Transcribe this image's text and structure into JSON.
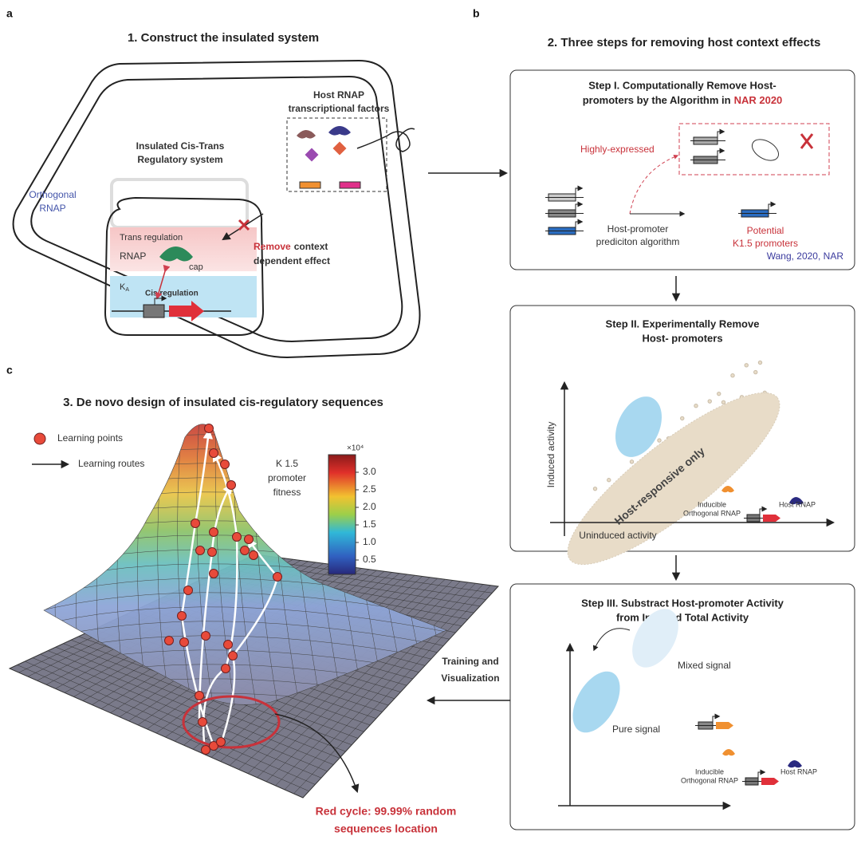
{
  "panel_a": {
    "label": "a",
    "title": "1. Construct the insulated system",
    "host_rnap": [
      "Host RNAP",
      "transcriptional factors"
    ],
    "insulated_system": [
      "Insulated Cis-Trans",
      "Regulatory system"
    ],
    "orthogonal_rnap": [
      "Orthogonal",
      "RNAP"
    ],
    "trans_regulation": "Trans regulation",
    "rnap": "RNAP",
    "cap": "cap",
    "ka": {
      "base": "K",
      "sub": "A"
    },
    "cis_regulation": "Cis regulation",
    "remove": {
      "highlight": "Remove",
      "rest": "context",
      "line2": "dependent effect"
    }
  },
  "panel_b": {
    "label": "b",
    "title": "2. Three steps for removing host context effects",
    "step1": {
      "title": [
        "Step I. Computationally Remove Host-",
        "promoters by the Algorithm in"
      ],
      "title_highlight": "NAR 2020",
      "highly_expressed": "Highly-expressed",
      "algorithm": [
        "Host-promoter",
        "prediciton algorithm"
      ],
      "potential": [
        "Potential",
        "K1.5 promoters"
      ],
      "citation": "Wang, 2020, NAR"
    },
    "step2": {
      "title": [
        "Step II. Experimentally Remove",
        "Host- promoters"
      ],
      "y_axis": "Induced activity",
      "x_axis": "Uninduced activity",
      "cluster": "Host-responsive only",
      "inducible": [
        "Inducible",
        "Orthogonal RNAP"
      ],
      "host_rnap": "Host RNAP"
    },
    "step3": {
      "title": [
        "Step III. Substract Host-promoter Activity",
        "from Induced Total Activity"
      ],
      "mixed": "Mixed signal",
      "pure": "Pure signal",
      "inducible": [
        "Inducible",
        "Orthogonal RNAP"
      ],
      "host_rnap": "Host RNAP"
    }
  },
  "panel_c": {
    "label": "c",
    "title": "3. De novo design of insulated cis-regulatory sequences",
    "legend": [
      "Learning points",
      "Learning routes"
    ],
    "colorbar_title": [
      "K 1.5",
      "promoter",
      "fitness"
    ],
    "colorbar_unit": "×10⁴",
    "colorbar_ticks": [
      "3.0",
      "2.5",
      "2.0",
      "1.5",
      "1.0",
      "0.5"
    ],
    "training": [
      "Training and",
      "Visualization"
    ],
    "red_cycle": [
      "Red cycle: 99.99% random",
      "sequences location"
    ]
  }
}
